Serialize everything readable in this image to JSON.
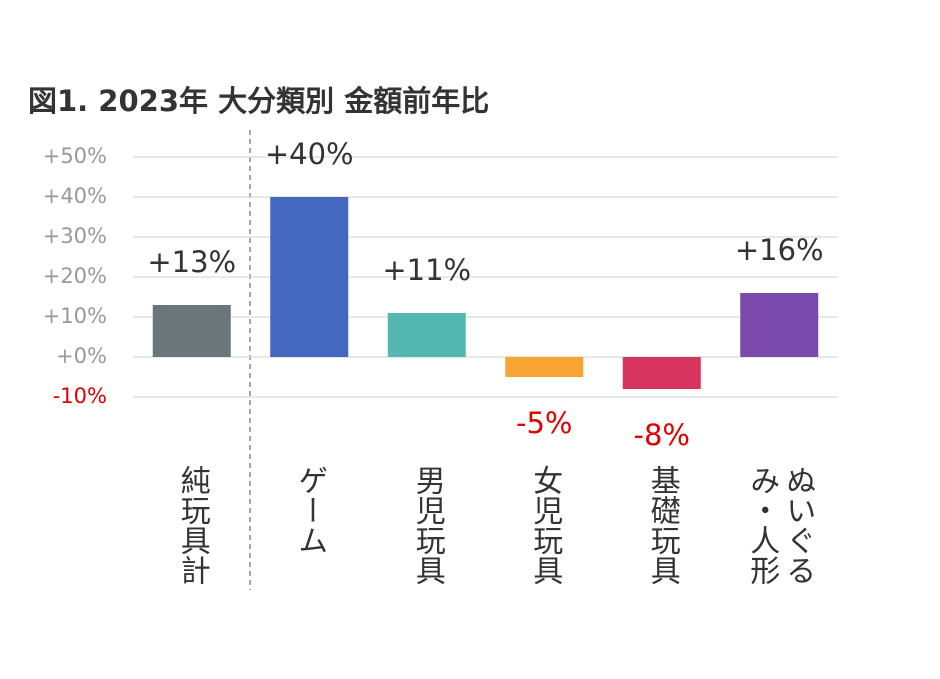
{
  "chart_data": {
    "type": "bar",
    "title": "図1.  2023年  大分類別  金額前年比",
    "categories": [
      "純玩具計",
      "ゲーム",
      "男児玩具",
      "女児玩具",
      "基礎玩具",
      "ぬいぐるみ・人形"
    ],
    "values": [
      13,
      40,
      11,
      -5,
      -8,
      16
    ],
    "value_labels": [
      "+13%",
      "+40%",
      "+11%",
      "-5%",
      "-8%",
      "+16%"
    ],
    "colors": [
      "#6b767b",
      "#4468c0",
      "#52b8b0",
      "#f9a533",
      "#d6335f",
      "#7b4aad"
    ],
    "ylim": [
      -10,
      50
    ],
    "yticks": [
      {
        "value": -10,
        "label": "-10%"
      },
      {
        "value": 0,
        "label": "+0%"
      },
      {
        "value": 10,
        "label": "+10%"
      },
      {
        "value": 20,
        "label": "+20%"
      },
      {
        "value": 30,
        "label": "+30%"
      },
      {
        "value": 40,
        "label": "+40%"
      },
      {
        "value": 50,
        "label": "+50%"
      }
    ],
    "grid": true
  }
}
